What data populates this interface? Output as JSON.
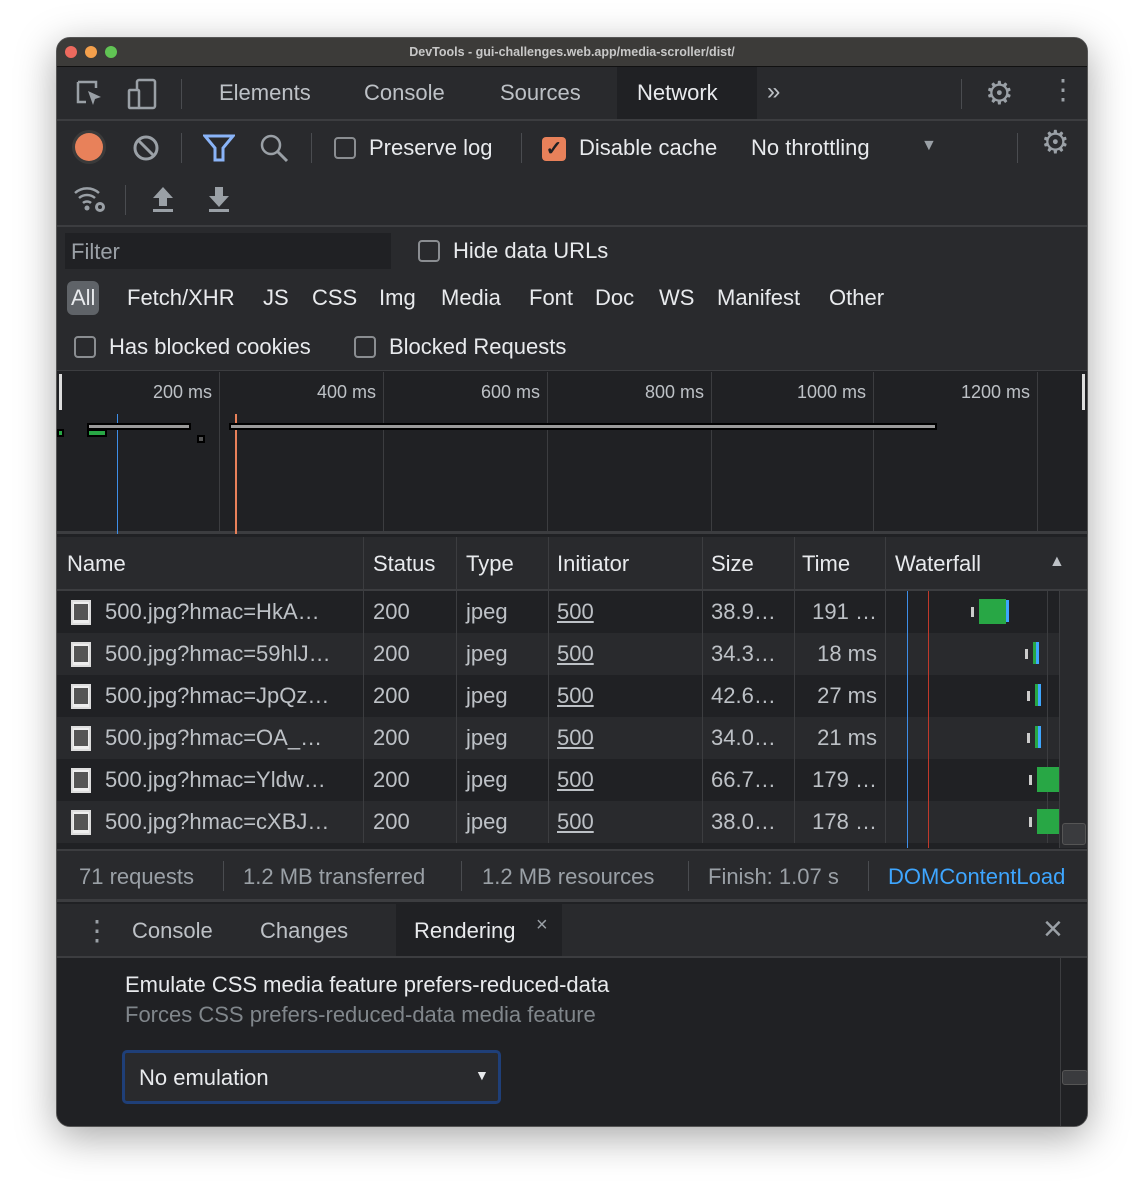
{
  "window": {
    "title": "DevTools - gui-challenges.web.app/media-scroller/dist/"
  },
  "main_tabs": [
    {
      "label": "Elements"
    },
    {
      "label": "Console"
    },
    {
      "label": "Sources"
    },
    {
      "label": "Network",
      "active": true
    }
  ],
  "toolbar": {
    "preserve_log": "Preserve log",
    "preserve_log_checked": false,
    "disable_cache": "Disable cache",
    "disable_cache_checked": true,
    "throttling": "No throttling"
  },
  "filter": {
    "placeholder": "Filter",
    "hide_data_urls": "Hide data URLs",
    "types": [
      "All",
      "Fetch/XHR",
      "JS",
      "CSS",
      "Img",
      "Media",
      "Font",
      "Doc",
      "WS",
      "Manifest",
      "Other"
    ],
    "active_type": "All",
    "has_blocked_cookies": "Has blocked cookies",
    "blocked_requests": "Blocked Requests"
  },
  "overview": {
    "ticks": [
      "200 ms",
      "400 ms",
      "600 ms",
      "800 ms",
      "1000 ms",
      "1200 ms"
    ]
  },
  "table": {
    "headers": [
      "Name",
      "Status",
      "Type",
      "Initiator",
      "Size",
      "Time",
      "Waterfall"
    ],
    "rows": [
      {
        "name": "500.jpg?hmac=HkA…",
        "status": "200",
        "type": "jpeg",
        "initiator": "500",
        "size": "38.9…",
        "time": "191 …"
      },
      {
        "name": "500.jpg?hmac=59hlJ…",
        "status": "200",
        "type": "jpeg",
        "initiator": "500",
        "size": "34.3…",
        "time": "18 ms"
      },
      {
        "name": "500.jpg?hmac=JpQz…",
        "status": "200",
        "type": "jpeg",
        "initiator": "500",
        "size": "42.6…",
        "time": "27 ms"
      },
      {
        "name": "500.jpg?hmac=OA_…",
        "status": "200",
        "type": "jpeg",
        "initiator": "500",
        "size": "34.0…",
        "time": "21 ms"
      },
      {
        "name": "500.jpg?hmac=Yldw…",
        "status": "200",
        "type": "jpeg",
        "initiator": "500",
        "size": "66.7…",
        "time": "179 …"
      },
      {
        "name": "500.jpg?hmac=cXBJ…",
        "status": "200",
        "type": "jpeg",
        "initiator": "500",
        "size": "38.0…",
        "time": "178 …"
      }
    ]
  },
  "summary": {
    "requests": "71 requests",
    "transferred": "1.2 MB transferred",
    "resources": "1.2 MB resources",
    "finish": "Finish: 1.07 s",
    "domcontentloaded": "DOMContentLoad"
  },
  "drawer": {
    "tabs": [
      {
        "label": "Console"
      },
      {
        "label": "Changes"
      },
      {
        "label": "Rendering",
        "active": true
      }
    ],
    "setting_title": "Emulate CSS media feature prefers-reduced-data",
    "setting_desc": "Forces CSS prefers-reduced-data media feature",
    "select_value": "No emulation"
  },
  "colors": {
    "accent": "#8ab4f8",
    "record": "#e8815a",
    "checkbox": "#e8815a",
    "link": "#3ea6ff",
    "bar_green": "#28a745",
    "dom_line": "#3e8ee8",
    "load_line": "#e8815a"
  }
}
